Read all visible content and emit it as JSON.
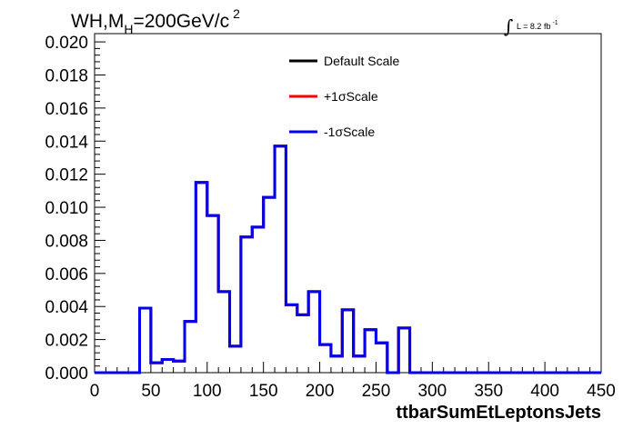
{
  "chart_data": {
    "type": "line",
    "title": {
      "main": "WH,M",
      "subscript": "H",
      "rest": "=200GeV/c",
      "superscript": "2"
    },
    "lumi_label": {
      "integral_symbol": "∫",
      "text": "L = 8.2 fb",
      "superscript": "-1"
    },
    "xlabel": "ttbarSumEtLeptonsJets",
    "ylabel": "",
    "xlim": [
      0,
      450
    ],
    "ylim": [
      0,
      0.0205
    ],
    "x_ticks": [
      "0",
      "50",
      "100",
      "150",
      "200",
      "250",
      "300",
      "350",
      "400",
      "450"
    ],
    "y_ticks": [
      "0.000",
      "0.002",
      "0.004",
      "0.006",
      "0.008",
      "0.010",
      "0.012",
      "0.014",
      "0.016",
      "0.018",
      "0.020"
    ],
    "bin_edges": [
      0,
      10,
      20,
      30,
      40,
      50,
      60,
      70,
      80,
      90,
      100,
      110,
      120,
      130,
      140,
      150,
      160,
      170,
      180,
      190,
      200,
      210,
      220,
      230,
      240,
      250,
      260,
      270,
      280,
      290,
      300,
      310,
      320,
      330,
      340,
      350,
      360,
      370,
      380,
      390,
      400,
      410,
      420,
      430,
      440,
      450
    ],
    "legend_position": "top-center",
    "series": [
      {
        "name": "Default Scale",
        "color": "#000000",
        "values": [
          0,
          0,
          0,
          0,
          0.0039,
          0.0006,
          0.0008,
          0.0007,
          0.0031,
          0.0115,
          0.0095,
          0.0049,
          0.0016,
          0.0082,
          0.0088,
          0.0106,
          0.0137,
          0.0041,
          0.0035,
          0.0049,
          0.0017,
          0.001,
          0.0038,
          0.001,
          0.0026,
          0.0018,
          0,
          0.0027,
          0,
          0,
          0,
          0,
          0,
          0,
          0,
          0,
          0,
          0,
          0,
          0,
          0,
          0,
          0,
          0,
          0
        ]
      },
      {
        "name": "+1σScale",
        "color": "#ff0000",
        "values": [
          0,
          0,
          0,
          0,
          0.0039,
          0.0006,
          0.0008,
          0.0007,
          0.0031,
          0.0115,
          0.0095,
          0.0049,
          0.0016,
          0.0082,
          0.0088,
          0.0106,
          0.0137,
          0.0041,
          0.0035,
          0.0049,
          0.0017,
          0.001,
          0.0038,
          0.001,
          0.0026,
          0.0018,
          0,
          0.0027,
          0,
          0,
          0,
          0,
          0,
          0,
          0,
          0,
          0,
          0,
          0,
          0,
          0,
          0,
          0,
          0,
          0
        ]
      },
      {
        "name": "-1σScale",
        "color": "#0000ee",
        "values": [
          0,
          0,
          0,
          0,
          0.0039,
          0.0006,
          0.0008,
          0.0007,
          0.0031,
          0.0115,
          0.0095,
          0.0049,
          0.0016,
          0.0082,
          0.0088,
          0.0106,
          0.0137,
          0.0041,
          0.0035,
          0.0049,
          0.0017,
          0.001,
          0.0038,
          0.001,
          0.0026,
          0.0018,
          0,
          0.0027,
          0,
          0,
          0,
          0,
          0,
          0,
          0,
          0,
          0,
          0,
          0,
          0,
          0,
          0,
          0,
          0,
          0
        ]
      }
    ]
  }
}
